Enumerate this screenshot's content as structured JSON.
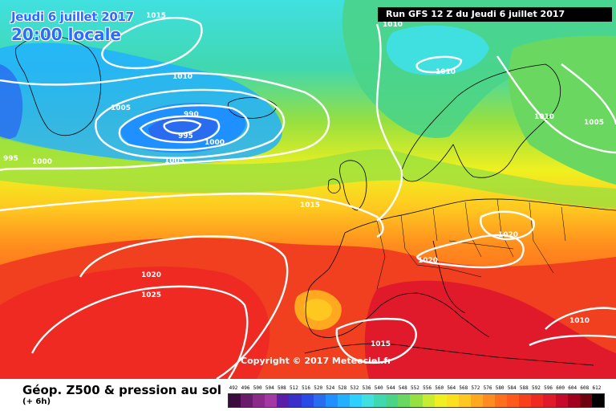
{
  "header": {
    "date_line": "Jeudi 6 juillet 2017",
    "time_line": "20:00 locale",
    "run_info": "Run GFS 12 Z du Jeudi 6 juillet 2017"
  },
  "copyright": "Copyright © 2017 Meteociel.fr",
  "legend": {
    "title": "Géop. Z500 & pression au sol",
    "subtitle": "(+ 6h)",
    "scale_values": [
      "492",
      "496",
      "500",
      "504",
      "508",
      "512",
      "516",
      "520",
      "524",
      "528",
      "532",
      "536",
      "540",
      "544",
      "548",
      "552",
      "556",
      "560",
      "564",
      "568",
      "572",
      "576",
      "580",
      "584",
      "588",
      "592",
      "596",
      "600",
      "604",
      "608",
      "612"
    ],
    "scale_colors": [
      "#3d0a3f",
      "#6b1b6b",
      "#8c2a8c",
      "#a33aa3",
      "#5a1fa8",
      "#3a2fc8",
      "#2a4ae6",
      "#2a6cf0",
      "#1e90ff",
      "#22b0ff",
      "#2fd0ff",
      "#40e0e0",
      "#40d8b0",
      "#4ad488",
      "#6ad860",
      "#96e040",
      "#c8ec30",
      "#f0f020",
      "#fce020",
      "#ffc820",
      "#ffa820",
      "#ff8c1e",
      "#ff701c",
      "#ff5a1c",
      "#f8401c",
      "#ee2a22",
      "#e01a2a",
      "#c80a2a",
      "#a0001e",
      "#700010",
      "#000000"
    ]
  },
  "isobar_labels": [
    "1015",
    "1010",
    "1010",
    "1005",
    "990",
    "995",
    "1000",
    "1005",
    "995",
    "1000",
    "1015",
    "1020",
    "1020",
    "1025",
    "1020",
    "1010",
    "1005",
    "1015",
    "1010"
  ],
  "map": {
    "colors": {
      "cold_blue": "#1e90ff",
      "cyan": "#40e0e0",
      "green": "#6ad860",
      "yellow": "#f0f020",
      "orange": "#ff8c1e",
      "red": "#f04020",
      "isobar": "#ffffff",
      "coastline": "#000000"
    }
  }
}
